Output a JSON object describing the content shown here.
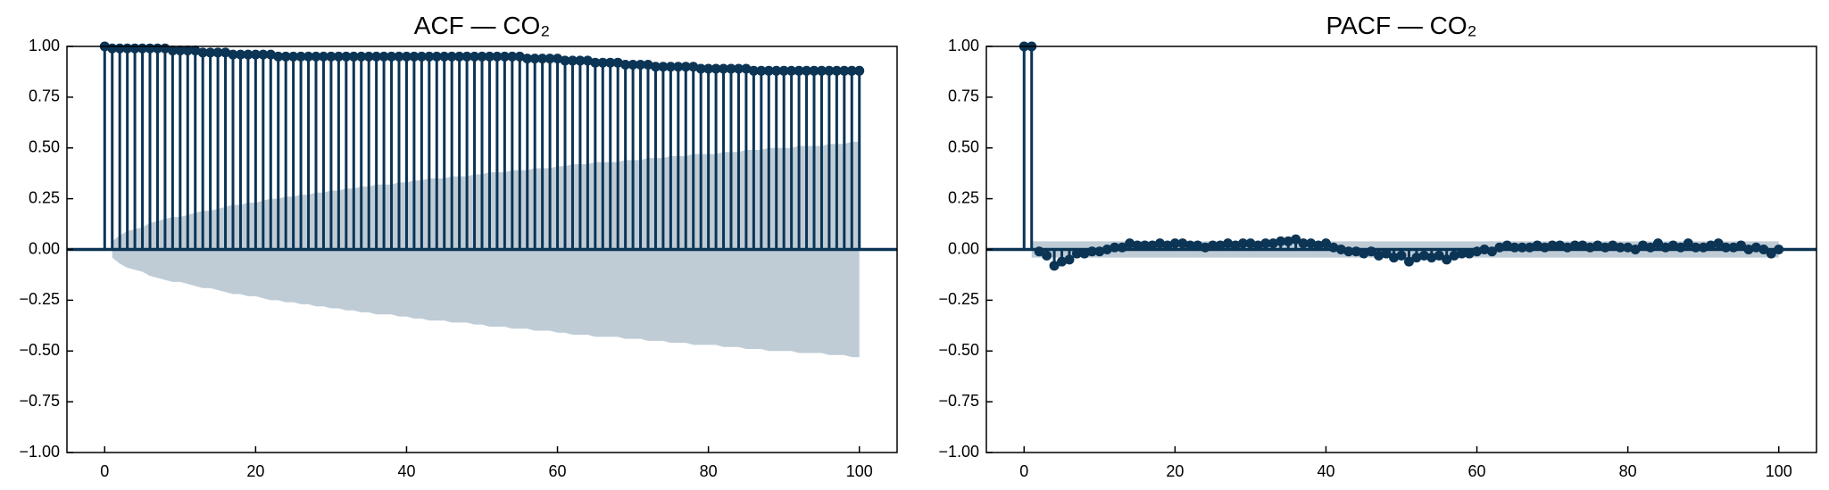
{
  "chart_data": [
    {
      "type": "stem",
      "title": "ACF — CO₂",
      "color": "#0b3455",
      "band_color": "#bfccd6",
      "x": [
        0,
        1,
        2,
        3,
        4,
        5,
        6,
        7,
        8,
        9,
        10,
        11,
        12,
        13,
        14,
        15,
        16,
        17,
        18,
        19,
        20,
        21,
        22,
        23,
        24,
        25,
        26,
        27,
        28,
        29,
        30,
        31,
        32,
        33,
        34,
        35,
        36,
        37,
        38,
        39,
        40,
        41,
        42,
        43,
        44,
        45,
        46,
        47,
        48,
        49,
        50,
        51,
        52,
        53,
        54,
        55,
        56,
        57,
        58,
        59,
        60,
        61,
        62,
        63,
        64,
        65,
        66,
        67,
        68,
        69,
        70,
        71,
        72,
        73,
        74,
        75,
        76,
        77,
        78,
        79,
        80,
        81,
        82,
        83,
        84,
        85,
        86,
        87,
        88,
        89,
        90,
        91,
        92,
        93,
        94,
        95,
        96,
        97,
        98,
        99,
        100
      ],
      "values": [
        1.0,
        0.99,
        0.99,
        0.99,
        0.99,
        0.99,
        0.99,
        0.99,
        0.99,
        0.98,
        0.98,
        0.98,
        0.98,
        0.97,
        0.97,
        0.97,
        0.97,
        0.96,
        0.96,
        0.96,
        0.96,
        0.96,
        0.96,
        0.95,
        0.95,
        0.95,
        0.95,
        0.95,
        0.95,
        0.95,
        0.95,
        0.95,
        0.95,
        0.95,
        0.95,
        0.95,
        0.95,
        0.95,
        0.95,
        0.95,
        0.95,
        0.95,
        0.95,
        0.95,
        0.95,
        0.95,
        0.95,
        0.95,
        0.95,
        0.95,
        0.95,
        0.95,
        0.95,
        0.95,
        0.95,
        0.95,
        0.94,
        0.94,
        0.94,
        0.94,
        0.94,
        0.93,
        0.93,
        0.93,
        0.93,
        0.92,
        0.92,
        0.92,
        0.92,
        0.91,
        0.91,
        0.91,
        0.91,
        0.9,
        0.9,
        0.9,
        0.9,
        0.9,
        0.9,
        0.89,
        0.89,
        0.89,
        0.89,
        0.89,
        0.89,
        0.89,
        0.88,
        0.88,
        0.88,
        0.88,
        0.88,
        0.88,
        0.88,
        0.88,
        0.88,
        0.88,
        0.88,
        0.88,
        0.88,
        0.88,
        0.88
      ],
      "confidence": [
        null,
        0.04,
        0.07,
        0.09,
        0.1,
        0.11,
        0.13,
        0.14,
        0.15,
        0.16,
        0.16,
        0.17,
        0.18,
        0.19,
        0.19,
        0.2,
        0.21,
        0.22,
        0.22,
        0.23,
        0.23,
        0.24,
        0.25,
        0.25,
        0.26,
        0.26,
        0.27,
        0.27,
        0.28,
        0.28,
        0.29,
        0.29,
        0.3,
        0.3,
        0.31,
        0.31,
        0.32,
        0.32,
        0.32,
        0.33,
        0.33,
        0.34,
        0.34,
        0.35,
        0.35,
        0.35,
        0.36,
        0.36,
        0.36,
        0.37,
        0.37,
        0.38,
        0.38,
        0.38,
        0.39,
        0.39,
        0.39,
        0.4,
        0.4,
        0.4,
        0.41,
        0.41,
        0.42,
        0.42,
        0.42,
        0.43,
        0.43,
        0.43,
        0.43,
        0.44,
        0.44,
        0.44,
        0.45,
        0.45,
        0.45,
        0.46,
        0.46,
        0.46,
        0.47,
        0.47,
        0.47,
        0.47,
        0.48,
        0.48,
        0.48,
        0.49,
        0.49,
        0.49,
        0.5,
        0.5,
        0.5,
        0.5,
        0.51,
        0.51,
        0.51,
        0.51,
        0.52,
        0.52,
        0.52,
        0.53,
        0.53
      ],
      "xlim": [
        -5,
        105
      ],
      "ylim": [
        -1,
        1
      ],
      "xticks": [
        0,
        20,
        40,
        60,
        80,
        100
      ],
      "yticks": [
        {
          "value": -1,
          "label": "−1.00"
        },
        {
          "value": -0.75,
          "label": "−0.75"
        },
        {
          "value": -0.5,
          "label": "−0.50"
        },
        {
          "value": -0.25,
          "label": "−0.25"
        },
        {
          "value": 0,
          "label": "0.00"
        },
        {
          "value": 0.25,
          "label": "0.25"
        },
        {
          "value": 0.5,
          "label": "0.50"
        },
        {
          "value": 0.75,
          "label": "0.75"
        },
        {
          "value": 1,
          "label": "1.00"
        }
      ]
    },
    {
      "type": "stem",
      "title": "PACF — CO₂",
      "color": "#0b3455",
      "band_color": "#bfccd6",
      "x": [
        0,
        1,
        2,
        3,
        4,
        5,
        6,
        7,
        8,
        9,
        10,
        11,
        12,
        13,
        14,
        15,
        16,
        17,
        18,
        19,
        20,
        21,
        22,
        23,
        24,
        25,
        26,
        27,
        28,
        29,
        30,
        31,
        32,
        33,
        34,
        35,
        36,
        37,
        38,
        39,
        40,
        41,
        42,
        43,
        44,
        45,
        46,
        47,
        48,
        49,
        50,
        51,
        52,
        53,
        54,
        55,
        56,
        57,
        58,
        59,
        60,
        61,
        62,
        63,
        64,
        65,
        66,
        67,
        68,
        69,
        70,
        71,
        72,
        73,
        74,
        75,
        76,
        77,
        78,
        79,
        80,
        81,
        82,
        83,
        84,
        85,
        86,
        87,
        88,
        89,
        90,
        91,
        92,
        93,
        94,
        95,
        96,
        97,
        98,
        99,
        100
      ],
      "values": [
        1,
        1,
        -0.01,
        -0.03,
        -0.08,
        -0.06,
        -0.05,
        -0.02,
        -0.02,
        -0.01,
        -0.01,
        0,
        0.01,
        0.01,
        0.03,
        0.02,
        0.02,
        0.02,
        0.03,
        0.02,
        0.03,
        0.03,
        0.02,
        0.02,
        0.01,
        0.02,
        0.02,
        0.03,
        0.02,
        0.03,
        0.03,
        0.02,
        0.03,
        0.03,
        0.04,
        0.04,
        0.05,
        0.03,
        0.03,
        0.02,
        0.03,
        0.01,
        0,
        -0.01,
        -0.01,
        -0.02,
        -0.01,
        -0.03,
        -0.02,
        -0.04,
        -0.03,
        -0.06,
        -0.04,
        -0.03,
        -0.04,
        -0.03,
        -0.05,
        -0.03,
        -0.02,
        -0.02,
        -0.01,
        0,
        -0.01,
        0.01,
        0.02,
        0.01,
        0.01,
        0.01,
        0.02,
        0.01,
        0.02,
        0.02,
        0.01,
        0.02,
        0.02,
        0.01,
        0.02,
        0.01,
        0.02,
        0.01,
        0.01,
        0,
        0.02,
        0.01,
        0.03,
        0.01,
        0.02,
        0.01,
        0.03,
        0.01,
        0.01,
        0.02,
        0.03,
        0.01,
        0.01,
        0.02,
        0,
        0.01,
        0,
        -0.02,
        0
      ],
      "confidence": 0.04,
      "xlim": [
        -5,
        105
      ],
      "ylim": [
        -1,
        1
      ],
      "xticks": [
        0,
        20,
        40,
        60,
        80,
        100
      ],
      "yticks": [
        {
          "value": -1,
          "label": "−1.00"
        },
        {
          "value": -0.75,
          "label": "−0.75"
        },
        {
          "value": -0.5,
          "label": "−0.50"
        },
        {
          "value": -0.25,
          "label": "−0.25"
        },
        {
          "value": 0,
          "label": "0.00"
        },
        {
          "value": 0.25,
          "label": "0.25"
        },
        {
          "value": 0.5,
          "label": "0.50"
        },
        {
          "value": 0.75,
          "label": "0.75"
        },
        {
          "value": 1,
          "label": "1.00"
        }
      ]
    }
  ]
}
